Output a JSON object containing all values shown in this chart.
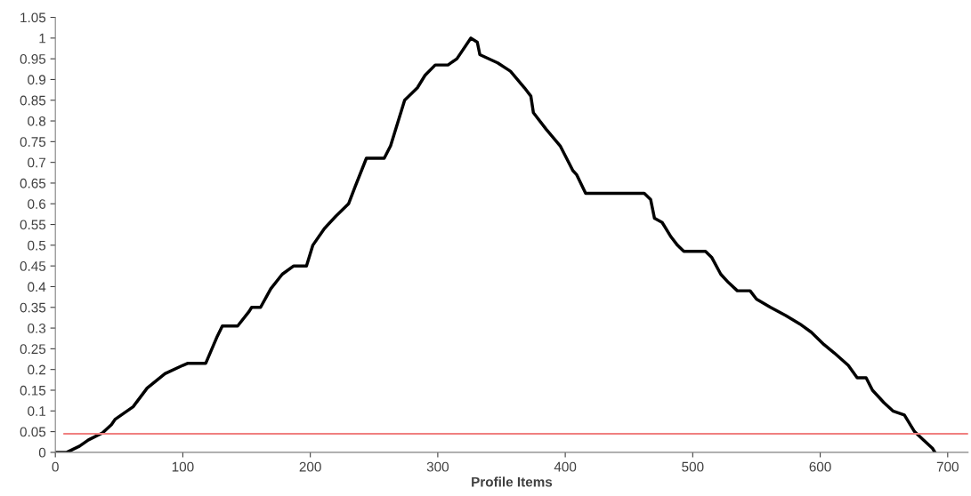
{
  "chart_data": {
    "type": "line",
    "xlabel": "Profile Items",
    "xlim": [
      0,
      716
    ],
    "ylim": [
      0,
      1.05
    ],
    "xticks": [
      0,
      100,
      200,
      300,
      400,
      500,
      600,
      700
    ],
    "yticks": [
      0,
      0.05,
      0.1,
      0.15,
      0.2,
      0.25,
      0.3,
      0.35,
      0.4,
      0.45,
      0.5,
      0.55,
      0.6,
      0.65,
      0.7,
      0.75,
      0.8,
      0.85,
      0.9,
      0.95,
      1,
      1.05
    ],
    "grid": false,
    "legend": false,
    "marker": "none",
    "line_style": "solid",
    "series": [
      {
        "color": "#000000",
        "x": [
          0,
          9,
          19,
          26,
          37,
          44,
          47,
          61,
          72,
          86,
          100,
          104,
          118,
          127,
          131,
          143,
          152,
          154,
          161,
          169,
          178,
          187,
          197,
          202,
          211,
          220,
          230,
          235,
          244,
          258,
          263,
          274,
          284,
          290,
          298,
          308,
          315,
          326,
          331,
          333,
          347,
          357,
          368,
          373,
          375,
          385,
          396,
          401,
          406,
          409,
          416,
          462,
          467,
          470,
          476,
          483,
          488,
          493,
          510,
          515,
          522,
          528,
          535,
          545,
          550,
          561,
          573,
          584,
          593,
          603,
          611,
          622,
          629,
          636,
          641,
          650,
          657,
          666,
          674,
          681,
          688,
          690
        ],
        "values": [
          0,
          0,
          0.015,
          0.03,
          0.047,
          0.067,
          0.08,
          0.11,
          0.155,
          0.19,
          0.21,
          0.215,
          0.215,
          0.28,
          0.305,
          0.305,
          0.34,
          0.35,
          0.35,
          0.395,
          0.43,
          0.45,
          0.45,
          0.5,
          0.54,
          0.57,
          0.6,
          0.64,
          0.71,
          0.71,
          0.74,
          0.85,
          0.88,
          0.91,
          0.935,
          0.935,
          0.95,
          1,
          0.99,
          0.96,
          0.94,
          0.92,
          0.88,
          0.86,
          0.82,
          0.78,
          0.74,
          0.71,
          0.68,
          0.67,
          0.625,
          0.625,
          0.61,
          0.565,
          0.555,
          0.52,
          0.5,
          0.485,
          0.485,
          0.47,
          0.43,
          0.41,
          0.39,
          0.39,
          0.37,
          0.35,
          0.33,
          0.31,
          0.29,
          0.26,
          0.24,
          0.21,
          0.18,
          0.18,
          0.15,
          0.12,
          0.1,
          0.09,
          0.05,
          0.03,
          0.01,
          0
        ]
      },
      {
        "color": "#f08080",
        "x": [
          7,
          716
        ],
        "values": [
          0.045,
          0.045
        ]
      }
    ]
  }
}
